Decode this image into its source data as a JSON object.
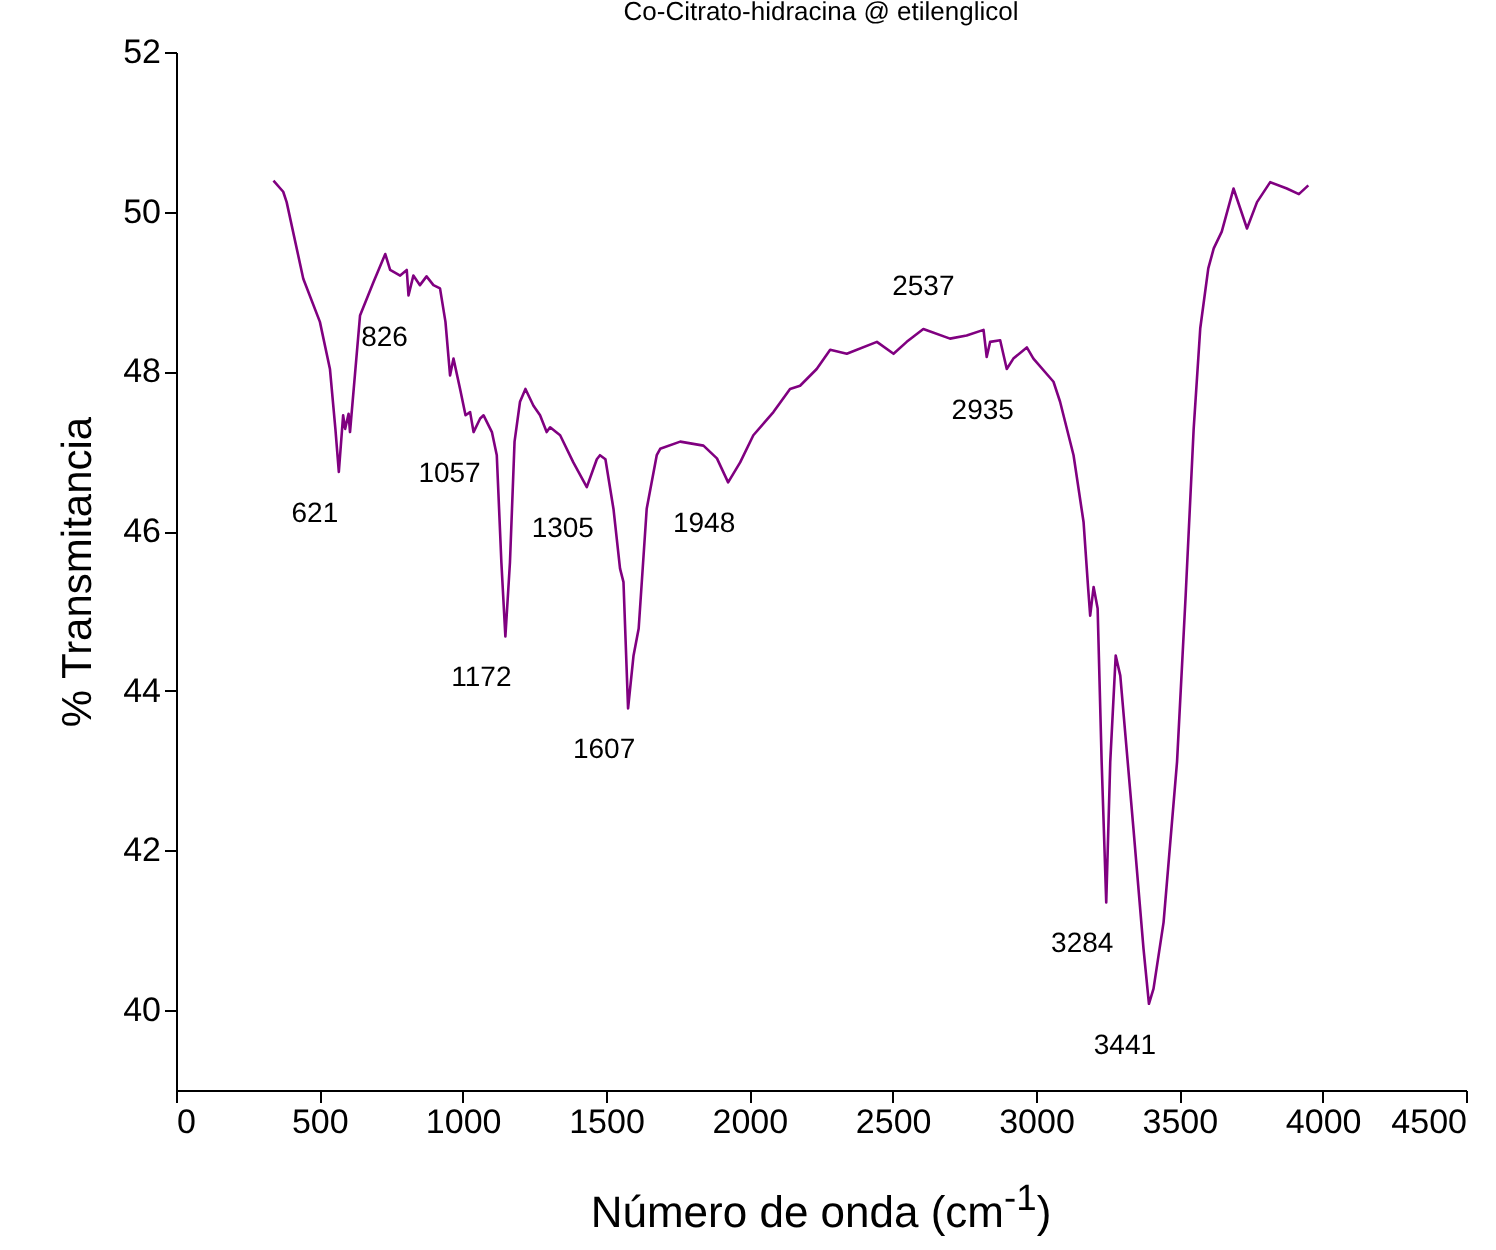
{
  "chart_data": {
    "type": "line",
    "title": "Co-Citrato-hidracina @ etilenglicol",
    "xlabel": "Número de onda (cm$^{-1}$)",
    "ylabel": "% Transmitancia",
    "xlim": [
      0,
      4500
    ],
    "ylim": [
      39,
      52
    ],
    "xticks": [
      0,
      500,
      1000,
      1500,
      2000,
      2500,
      3000,
      3500,
      4000,
      4500
    ],
    "yticks": [
      40,
      42,
      44,
      46,
      48,
      50,
      52
    ],
    "grid": false,
    "series": [
      {
        "color": "#800080",
        "x": [
          340,
          374,
          386,
          444,
          502,
          537,
          556,
          568,
          583,
          590,
          602,
          607,
          642,
          689,
          730,
          747,
          782,
          805,
          811,
          828,
          851,
          874,
          898,
          921,
          940,
          956,
          968,
          991,
          1010,
          1026,
          1038,
          1061,
          1073,
          1102,
          1119,
          1135,
          1149,
          1165,
          1181,
          1200,
          1219,
          1247,
          1270,
          1293,
          1305,
          1340,
          1386,
          1433,
          1456,
          1468,
          1479,
          1498,
          1526,
          1549,
          1561,
          1577,
          1596,
          1614,
          1642,
          1677,
          1689,
          1759,
          1840,
          1887,
          1926,
          1968,
          2014,
          2084,
          2142,
          2177,
          2235,
          2282,
          2340,
          2445,
          2503,
          2549,
          2607,
          2700,
          2758,
          2817,
          2828,
          2840,
          2875,
          2898,
          2921,
          2968,
          2991,
          3061,
          3084,
          3131,
          3166,
          3182,
          3189,
          3201,
          3215,
          3229,
          3245,
          3259,
          3278,
          3294,
          3340,
          3375,
          3394,
          3410,
          3445,
          3492,
          3522,
          3550,
          3573,
          3601,
          3620,
          3648,
          3689,
          3736,
          3771,
          3817,
          3875,
          3917,
          3950
        ],
        "values": [
          50.39,
          50.25,
          50.12,
          49.16,
          48.62,
          48.03,
          47.28,
          46.74,
          47.45,
          47.28,
          47.47,
          47.24,
          48.7,
          49.12,
          49.47,
          49.27,
          49.2,
          49.27,
          48.95,
          49.2,
          49.08,
          49.19,
          49.08,
          49.04,
          48.62,
          47.95,
          48.16,
          47.78,
          47.45,
          47.49,
          47.24,
          47.41,
          47.45,
          47.24,
          46.95,
          45.61,
          44.68,
          45.61,
          47.12,
          47.62,
          47.78,
          47.57,
          47.45,
          47.24,
          47.3,
          47.2,
          46.86,
          46.55,
          46.78,
          46.9,
          46.95,
          46.9,
          46.28,
          45.53,
          45.36,
          43.78,
          44.44,
          44.78,
          46.28,
          46.95,
          47.03,
          47.12,
          47.07,
          46.91,
          46.61,
          46.86,
          47.2,
          47.49,
          47.78,
          47.82,
          48.03,
          48.27,
          48.22,
          48.37,
          48.22,
          48.37,
          48.53,
          48.41,
          48.45,
          48.52,
          48.18,
          48.37,
          48.39,
          48.03,
          48.16,
          48.3,
          48.16,
          47.87,
          47.62,
          46.95,
          46.11,
          45.28,
          44.94,
          45.3,
          45.03,
          43.11,
          41.35,
          43.11,
          44.44,
          44.19,
          42.27,
          40.77,
          40.08,
          40.27,
          41.1,
          43.11,
          45.19,
          47.28,
          48.54,
          49.29,
          49.54,
          49.75,
          50.29,
          49.79,
          50.12,
          50.37,
          50.29,
          50.22,
          50.33
        ]
      }
    ],
    "annotations": [
      {
        "text": "621",
        "x": 568,
        "y": 46.74
      },
      {
        "text": "826",
        "x": 811,
        "y": 48.95
      },
      {
        "text": "1057",
        "x": 1038,
        "y": 47.24
      },
      {
        "text": "1172",
        "x": 1149,
        "y": 44.68
      },
      {
        "text": "1305",
        "x": 1433,
        "y": 46.55
      },
      {
        "text": "1607",
        "x": 1577,
        "y": 43.78
      },
      {
        "text": "1948",
        "x": 1926,
        "y": 46.61
      },
      {
        "text": "2537",
        "x": 2607,
        "y": 48.53
      },
      {
        "text": "2935",
        "x": 2898,
        "y": 48.03
      },
      {
        "text": "3284",
        "x": 3245,
        "y": 41.35
      },
      {
        "text": "3441",
        "x": 3394,
        "y": 40.08
      }
    ]
  }
}
